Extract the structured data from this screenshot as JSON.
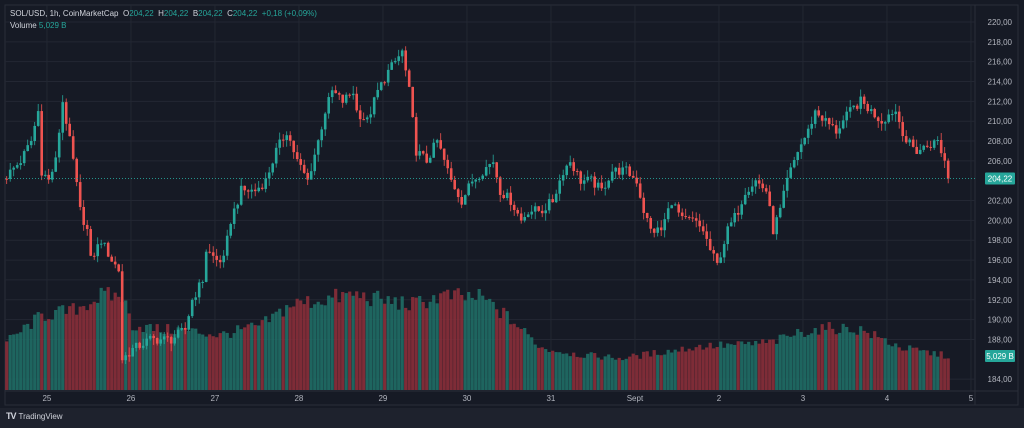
{
  "header": {
    "symbol": "SOL/USD, 1h, CoinMarketCap",
    "o_label": "O",
    "o": "204,22",
    "h_label": "H",
    "h": "204,22",
    "l_label": "B",
    "l": "204,22",
    "c_label": "C",
    "c": "204,22",
    "change": "+0,18 (+0,09%)",
    "volume_label": "Volume",
    "volume": "5,029 B"
  },
  "footer": {
    "brand": "TradingView"
  },
  "colors": {
    "up": "#26a69a",
    "down": "#ef5350",
    "bg": "#161a25",
    "grid": "#232733"
  },
  "chart_data": {
    "type": "candlestick",
    "title": "SOL/USD, 1h, CoinMarketCap",
    "candle_count": 270,
    "close_waypoints": [
      [
        0,
        204.5
      ],
      [
        4,
        206
      ],
      [
        7,
        208
      ],
      [
        9,
        211
      ],
      [
        10,
        205
      ],
      [
        12,
        204
      ],
      [
        14,
        206
      ],
      [
        16,
        212
      ],
      [
        19,
        206
      ],
      [
        21,
        201
      ],
      [
        23,
        199
      ],
      [
        24,
        196
      ],
      [
        27,
        198
      ],
      [
        30,
        196
      ],
      [
        32,
        195
      ],
      [
        33,
        186
      ],
      [
        36,
        187
      ],
      [
        41,
        188
      ],
      [
        47,
        188
      ],
      [
        51,
        189
      ],
      [
        53,
        192
      ],
      [
        56,
        194
      ],
      [
        57,
        197
      ],
      [
        60,
        196
      ],
      [
        62,
        196
      ],
      [
        64,
        200
      ],
      [
        67,
        203
      ],
      [
        71,
        203
      ],
      [
        74,
        204
      ],
      [
        77,
        207
      ],
      [
        80,
        209
      ],
      [
        83,
        206
      ],
      [
        86,
        204
      ],
      [
        89,
        208
      ],
      [
        91,
        211
      ],
      [
        93,
        213
      ],
      [
        96,
        212
      ],
      [
        99,
        213
      ],
      [
        100,
        211
      ],
      [
        103,
        210
      ],
      [
        106,
        213
      ],
      [
        109,
        215
      ],
      [
        111,
        216
      ],
      [
        113,
        217
      ],
      [
        115,
        213
      ],
      [
        117,
        207
      ],
      [
        120,
        206
      ],
      [
        123,
        208
      ],
      [
        124,
        207
      ],
      [
        127,
        204
      ],
      [
        130,
        202
      ],
      [
        133,
        204
      ],
      [
        136,
        205
      ],
      [
        139,
        206
      ],
      [
        141,
        203
      ],
      [
        144,
        202
      ],
      [
        147,
        200
      ],
      [
        149,
        201
      ],
      [
        153,
        201
      ],
      [
        156,
        202
      ],
      [
        159,
        205
      ],
      [
        161,
        206
      ],
      [
        164,
        204
      ],
      [
        167,
        204
      ],
      [
        170,
        203
      ],
      [
        173,
        205
      ],
      [
        177,
        205
      ],
      [
        180,
        204
      ],
      [
        182,
        201
      ],
      [
        184,
        199
      ],
      [
        187,
        199
      ],
      [
        190,
        202
      ],
      [
        193,
        200
      ],
      [
        196,
        200
      ],
      [
        199,
        199
      ],
      [
        201,
        197
      ],
      [
        203,
        195.5
      ],
      [
        206,
        199
      ],
      [
        209,
        201
      ],
      [
        211,
        203
      ],
      [
        214,
        204
      ],
      [
        217,
        203
      ],
      [
        219,
        199
      ],
      [
        221,
        201
      ],
      [
        223,
        204
      ],
      [
        226,
        207
      ],
      [
        229,
        209
      ],
      [
        231,
        211
      ],
      [
        234,
        210
      ],
      [
        237,
        209
      ],
      [
        241,
        211
      ],
      [
        244,
        212
      ],
      [
        247,
        211
      ],
      [
        250,
        210
      ],
      [
        253,
        211
      ],
      [
        254,
        211
      ],
      [
        257,
        208
      ],
      [
        260,
        207
      ],
      [
        263,
        207.5
      ],
      [
        266,
        208
      ],
      [
        268,
        206
      ],
      [
        269,
        204.22
      ]
    ],
    "volume_waypoints_B": [
      [
        0,
        7.1
      ],
      [
        10,
        11.0
      ],
      [
        19,
        11.8
      ],
      [
        27,
        13.9
      ],
      [
        33,
        13.9
      ],
      [
        36,
        9.6
      ],
      [
        44,
        8.9
      ],
      [
        50,
        8.9
      ],
      [
        61,
        8.1
      ],
      [
        73,
        9.6
      ],
      [
        81,
        12.6
      ],
      [
        99,
        14.1
      ],
      [
        107,
        13.3
      ],
      [
        116,
        12.6
      ],
      [
        124,
        13.9
      ],
      [
        136,
        13.6
      ],
      [
        144,
        10.4
      ],
      [
        153,
        6.2
      ],
      [
        164,
        5.2
      ],
      [
        176,
        4.7
      ],
      [
        187,
        5.6
      ],
      [
        199,
        6.5
      ],
      [
        210,
        6.7
      ],
      [
        219,
        7.1
      ],
      [
        227,
        8.6
      ],
      [
        236,
        9.2
      ],
      [
        244,
        8.9
      ],
      [
        256,
        6.2
      ],
      [
        269,
        5.029
      ]
    ],
    "last_price": 204.22,
    "last_price_label": "204,22",
    "last_volume_label": "5,029 B",
    "y_ticks": [
      "220,00",
      "218,00",
      "216,00",
      "214,00",
      "212,00",
      "210,00",
      "208,00",
      "206,00",
      "202,00",
      "200,00",
      "198,00",
      "196,00",
      "194,00",
      "192,00",
      "190,00",
      "188,00",
      "184,00"
    ],
    "ylim": [
      184,
      220
    ],
    "x_ticks": [
      {
        "label": "25",
        "index": 11.5
      },
      {
        "label": "26",
        "index": 35.5
      },
      {
        "label": "27",
        "index": 59.5
      },
      {
        "label": "28",
        "index": 83.5
      },
      {
        "label": "29",
        "index": 107.5
      },
      {
        "label": "30",
        "index": 131.5
      },
      {
        "label": "31",
        "index": 155.5
      },
      {
        "label": "Sept",
        "index": 179.5
      },
      {
        "label": "2",
        "index": 203.5
      },
      {
        "label": "3",
        "index": 227.5
      },
      {
        "label": "4",
        "index": 251.5
      },
      {
        "label": "5",
        "index": 275.5
      }
    ]
  }
}
